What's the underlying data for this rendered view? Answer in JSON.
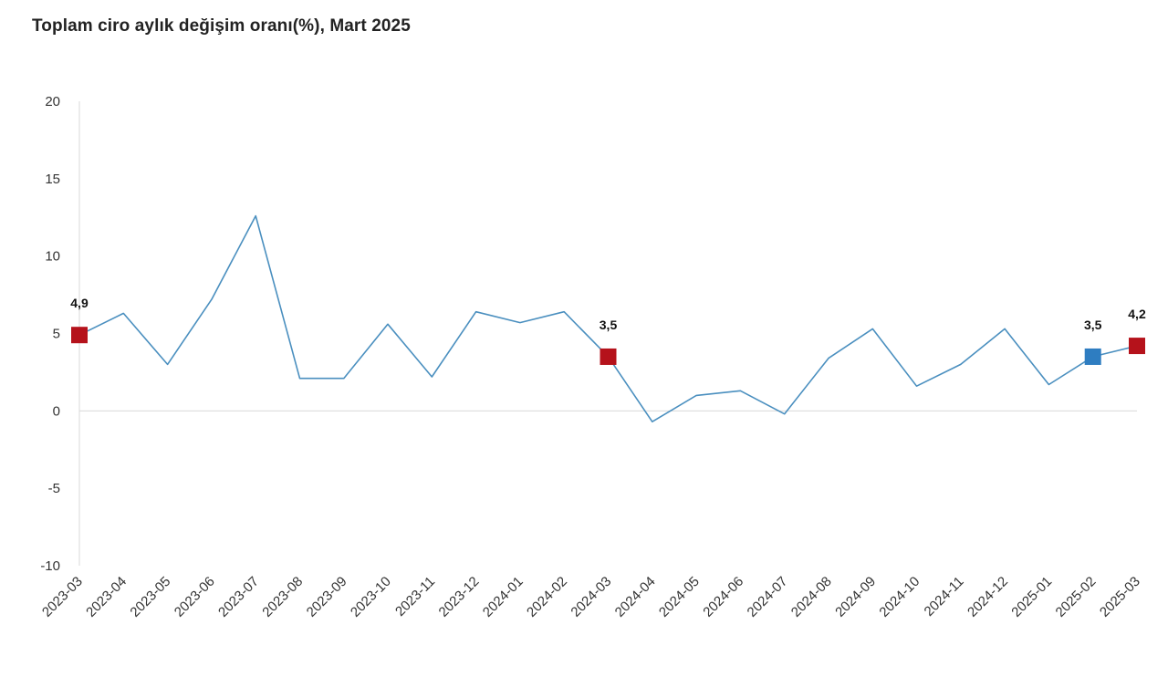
{
  "chart_data": {
    "type": "line",
    "title": "Toplam ciro aylık değişim oranı(%), Mart 2025",
    "xlabel": "",
    "ylabel": "",
    "ylim": [
      -10,
      20
    ],
    "yticks": [
      "20",
      "15",
      "10",
      "5",
      "0",
      "-5",
      "-10"
    ],
    "categories": [
      "2023-03",
      "2023-04",
      "2023-05",
      "2023-06",
      "2023-07",
      "2023-08",
      "2023-09",
      "2023-10",
      "2023-11",
      "2023-12",
      "2024-01",
      "2024-02",
      "2024-03",
      "2024-04",
      "2024-05",
      "2024-06",
      "2024-07",
      "2024-08",
      "2024-09",
      "2024-10",
      "2024-11",
      "2024-12",
      "2025-01",
      "2025-02",
      "2025-03"
    ],
    "series": [
      {
        "name": "Toplam ciro aylık değişim oranı",
        "values": [
          4.9,
          6.3,
          3.0,
          7.2,
          12.6,
          2.1,
          2.1,
          5.6,
          2.2,
          6.4,
          5.7,
          6.4,
          3.5,
          -0.7,
          1.0,
          1.3,
          -0.2,
          3.4,
          5.3,
          1.6,
          3.0,
          5.3,
          1.7,
          3.5,
          4.2
        ]
      }
    ],
    "highlighted_points": [
      {
        "category": "2023-03",
        "label": "4,9",
        "color": "#b5121b"
      },
      {
        "category": "2024-03",
        "label": "3,5",
        "color": "#b5121b"
      },
      {
        "category": "2025-02",
        "label": "3,5",
        "color": "#2e7dc1"
      },
      {
        "category": "2025-03",
        "label": "4,2",
        "color": "#b5121b"
      }
    ],
    "line_color": "#4a8fbf",
    "grid": false
  }
}
